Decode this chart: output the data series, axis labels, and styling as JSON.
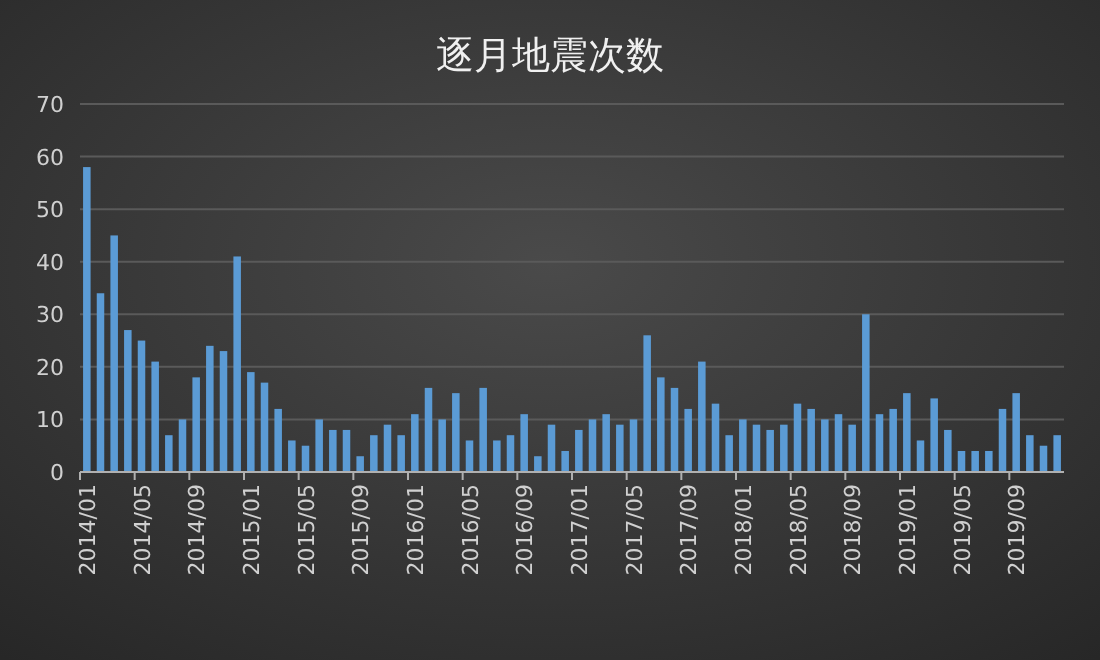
{
  "chart_data": {
    "type": "bar",
    "title": "逐月地震次数",
    "categories": [
      "2014/01",
      null,
      null,
      null,
      "2014/05",
      null,
      null,
      null,
      "2014/09",
      null,
      null,
      null,
      "2015/01",
      null,
      null,
      null,
      "2015/05",
      null,
      null,
      null,
      "2015/09",
      null,
      null,
      null,
      "2016/01",
      null,
      null,
      null,
      "2016/05",
      null,
      null,
      null,
      "2016/09",
      null,
      null,
      null,
      "2017/01",
      null,
      null,
      null,
      "2017/05",
      null,
      null,
      null,
      "2017/09",
      null,
      null,
      null,
      "2018/01",
      null,
      null,
      null,
      "2018/05",
      null,
      null,
      null,
      "2018/09",
      null,
      null,
      null,
      "2019/01",
      null,
      null,
      null,
      "2019/05",
      null,
      null,
      null,
      "2019/09",
      null,
      null,
      null
    ],
    "values": [
      58,
      34,
      45,
      27,
      25,
      21,
      7,
      10,
      18,
      24,
      23,
      41,
      19,
      17,
      12,
      6,
      5,
      10,
      8,
      8,
      3,
      7,
      9,
      7,
      11,
      16,
      10,
      15,
      6,
      16,
      6,
      7,
      11,
      3,
      9,
      4,
      8,
      10,
      11,
      9,
      10,
      26,
      18,
      16,
      12,
      21,
      13,
      7,
      10,
      9,
      8,
      9,
      13,
      12,
      10,
      11,
      9,
      30,
      11,
      12,
      15,
      6,
      14,
      8,
      4,
      4,
      4,
      12,
      15,
      7,
      5,
      7
    ],
    "color": "#5b9bd5",
    "ylim": [
      0,
      70
    ],
    "yticks": [
      0,
      10,
      20,
      30,
      40,
      50,
      60,
      70
    ],
    "grid": "y"
  }
}
